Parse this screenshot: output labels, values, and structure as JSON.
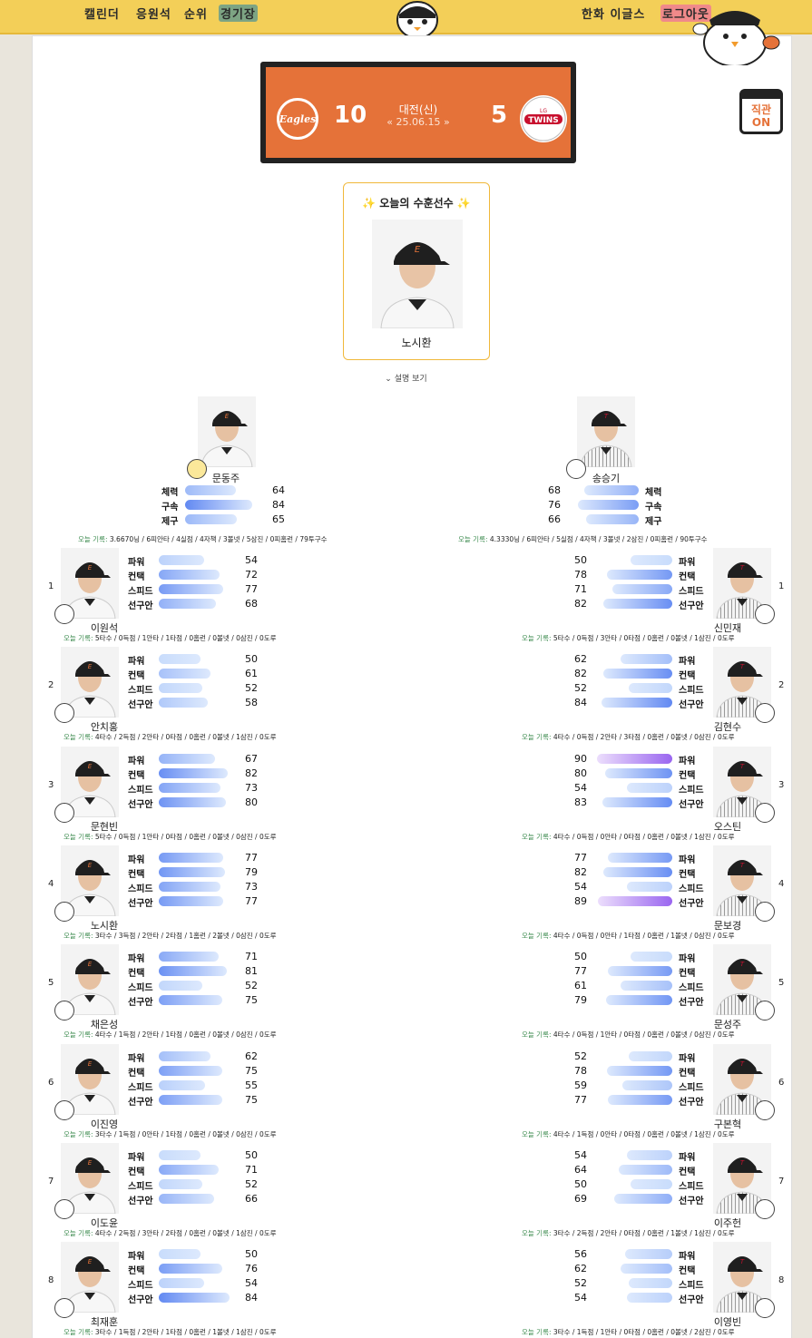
{
  "nav": {
    "items": [
      "캘린더",
      "응원석",
      "순위",
      "경기장"
    ],
    "active": "경기장",
    "team_name": "한화 이글스",
    "logout": "로그아웃"
  },
  "game": {
    "home_team": "Eagles",
    "home_score": "10",
    "away_team": "TWINS",
    "away_team_prefix": "LG",
    "away_score": "5",
    "stadium": "대전(신)",
    "date": "25.06.15",
    "prev": "«",
    "next": "»"
  },
  "calendar_badge": {
    "line1": "직관",
    "line2": "ON"
  },
  "mvp": {
    "title": "오늘의 수훈선수",
    "name": "노시환",
    "sparkle": "✨"
  },
  "more_label": "설명 보기",
  "today_prefix": "오늘 기록:",
  "pitchers": {
    "home": {
      "name": "문동주",
      "icon": "fireball-icon",
      "stats": [
        {
          "label": "체력",
          "value": 64
        },
        {
          "label": "구속",
          "value": 84
        },
        {
          "label": "제구",
          "value": 65
        }
      ],
      "today": "3.6670닝 / 6피안타 / 4실점 / 4자책 / 3볼넷 / 5삼진 / 0피홈런 / 79투구수"
    },
    "away": {
      "name": "송승기",
      "icon": "flex-arm-icon",
      "stats": [
        {
          "label": "체력",
          "value": 68
        },
        {
          "label": "구속",
          "value": 76
        },
        {
          "label": "제구",
          "value": 66
        }
      ],
      "today": "4.3330닝 / 6피안타 / 5실점 / 4자책 / 3볼넷 / 2삼진 / 0피홈런 / 90투구수"
    }
  },
  "stat_labels": [
    "파워",
    "컨택",
    "스피드",
    "선구안"
  ],
  "batters": [
    {
      "order": "1",
      "home": {
        "name": "이원석",
        "stats": [
          54,
          72,
          77,
          68
        ],
        "icon": "crossed-bats-icon",
        "today": "5타수 / 0득점 / 1안타 / 1타점 / 0홈런 / 0볼넷 / 0삼진 / 0도루"
      },
      "away": {
        "name": "신민재",
        "stats": [
          50,
          78,
          71,
          82
        ],
        "icon": "crossed-bats-icon",
        "today": "5타수 / 0득점 / 3안타 / 0타점 / 0홈런 / 0볼넷 / 1삼진 / 0도루"
      }
    },
    {
      "order": "2",
      "home": {
        "name": "안치홍",
        "stats": [
          50,
          61,
          52,
          58
        ],
        "icon": "cloud-icon",
        "today": "4타수 / 2득점 / 2안타 / 0타점 / 0홈런 / 0볼넷 / 1삼진 / 0도루"
      },
      "away": {
        "name": "김현수",
        "stats": [
          62,
          82,
          52,
          84
        ],
        "icon": "target-icon",
        "today": "4타수 / 0득점 / 2안타 / 3타점 / 0홈런 / 0볼넷 / 0삼진 / 0도루"
      }
    },
    {
      "order": "3",
      "home": {
        "name": "문현빈",
        "stats": [
          67,
          82,
          73,
          80
        ],
        "icon": "bat-ball-icon",
        "today": "5타수 / 0득점 / 1안타 / 0타점 / 0홈런 / 0볼넷 / 0삼진 / 0도루"
      },
      "away": {
        "name": "오스틴",
        "stats": [
          90,
          80,
          54,
          83
        ],
        "icon": "target-icon",
        "today": "4타수 / 0득점 / 0안타 / 0타점 / 0홈런 / 0볼넷 / 1삼진 / 0도루"
      }
    },
    {
      "order": "4",
      "home": {
        "name": "노시환",
        "stats": [
          77,
          79,
          73,
          77
        ],
        "icon": "target-icon",
        "today": "3타수 / 3득점 / 2안타 / 2타점 / 1홈런 / 2볼넷 / 0삼진 / 0도루"
      },
      "away": {
        "name": "문보경",
        "stats": [
          77,
          82,
          54,
          89
        ],
        "icon": "target-icon",
        "today": "4타수 / 0득점 / 0안타 / 1타점 / 0홈런 / 1볼넷 / 0삼진 / 0도루"
      }
    },
    {
      "order": "5",
      "home": {
        "name": "채은성",
        "stats": [
          71,
          81,
          52,
          75
        ],
        "icon": "bat-ball-icon",
        "today": "4타수 / 1득점 / 2안타 / 1타점 / 0홈런 / 0볼넷 / 0삼진 / 0도루"
      },
      "away": {
        "name": "문성주",
        "stats": [
          50,
          77,
          61,
          79
        ],
        "icon": "crossed-bats-icon",
        "today": "4타수 / 0득점 / 1안타 / 0타점 / 0홈런 / 0볼넷 / 0삼진 / 0도루"
      }
    },
    {
      "order": "6",
      "home": {
        "name": "이진영",
        "stats": [
          62,
          75,
          55,
          75
        ],
        "icon": "bat-ball-icon",
        "today": "3타수 / 1득점 / 0안타 / 1타점 / 0홈런 / 0볼넷 / 0삼진 / 0도루"
      },
      "away": {
        "name": "구본혁",
        "stats": [
          52,
          78,
          59,
          77
        ],
        "icon": "magnifier-icon",
        "today": "4타수 / 1득점 / 0안타 / 0타점 / 0홈런 / 0볼넷 / 1삼진 / 0도루"
      }
    },
    {
      "order": "7",
      "home": {
        "name": "이도윤",
        "stats": [
          50,
          71,
          52,
          66
        ],
        "icon": "cloud-icon",
        "today": "4타수 / 2득점 / 3안타 / 2타점 / 0홈런 / 0볼넷 / 1삼진 / 0도루"
      },
      "away": {
        "name": "이주헌",
        "stats": [
          54,
          64,
          50,
          69
        ],
        "icon": "cloud-icon",
        "today": "3타수 / 2득점 / 2안타 / 0타점 / 0홈런 / 1볼넷 / 1삼진 / 0도루"
      }
    },
    {
      "order": "8",
      "home": {
        "name": "최재훈",
        "stats": [
          50,
          76,
          54,
          84
        ],
        "icon": "magnifier-icon",
        "today": "3타수 / 1득점 / 2안타 / 1타점 / 0홈런 / 1볼넷 / 1삼진 / 0도루"
      },
      "away": {
        "name": "이영빈",
        "stats": [
          56,
          62,
          52,
          54
        ],
        "icon": "cloud-icon",
        "today": "3타수 / 1득점 / 1안타 / 0타점 / 0홈런 / 0볼넷 / 2삼진 / 0도루"
      }
    }
  ],
  "colors": {
    "topbar": "#f3cf58",
    "scoreboard": "#e57239",
    "mvp_border": "#f0b83a",
    "bar_light": "#c9dcfb",
    "bar_dark": "#5e86f3",
    "bar_purple": "#9a66f0",
    "today_label": "#3c8b4f"
  }
}
